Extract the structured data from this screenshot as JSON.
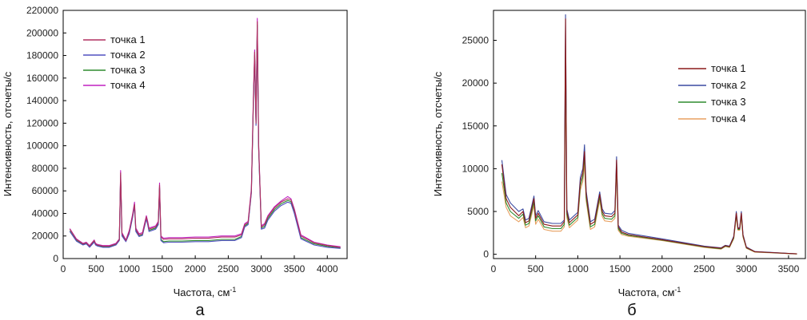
{
  "chart_data": [
    {
      "type": "line",
      "panel_label": "а",
      "xlabel": "Частота, см",
      "xlabel_sup": "-1",
      "ylabel": "Интенсивность, отсчеты/с",
      "xlim": [
        0,
        4300
      ],
      "ylim": [
        0,
        220000
      ],
      "xticks": [
        0,
        500,
        1000,
        1500,
        2000,
        2500,
        3000,
        3500,
        4000
      ],
      "yticks": [
        0,
        20000,
        40000,
        60000,
        80000,
        100000,
        120000,
        140000,
        160000,
        180000,
        200000,
        220000
      ],
      "grid": false,
      "legend": "top-left",
      "x": [
        100,
        200,
        300,
        350,
        400,
        470,
        490,
        520,
        600,
        700,
        800,
        850,
        870,
        890,
        950,
        1000,
        1050,
        1080,
        1100,
        1150,
        1200,
        1260,
        1280,
        1300,
        1400,
        1440,
        1460,
        1480,
        1520,
        1600,
        1800,
        2000,
        2200,
        2400,
        2600,
        2700,
        2750,
        2800,
        2850,
        2880,
        2900,
        2920,
        2940,
        2960,
        3000,
        3050,
        3100,
        3200,
        3300,
        3400,
        3450,
        3500,
        3600,
        3800,
        4000,
        4200
      ],
      "series": [
        {
          "name": "точка 1",
          "color": "#b03060",
          "values": [
            26000,
            17000,
            13000,
            14000,
            11000,
            16000,
            13000,
            12000,
            11000,
            11000,
            13000,
            17000,
            76000,
            22000,
            16000,
            24000,
            38000,
            48000,
            26000,
            21000,
            22000,
            37000,
            32000,
            26000,
            28000,
            32000,
            65000,
            19000,
            17000,
            17500,
            17500,
            18000,
            18000,
            19000,
            19000,
            21000,
            30000,
            32000,
            60000,
            140000,
            183000,
            120000,
            210000,
            100000,
            28000,
            30000,
            37000,
            45000,
            50000,
            53000,
            52000,
            43000,
            20000,
            14000,
            11500,
            10000
          ]
        },
        {
          "name": "точка 2",
          "color": "#5050c0",
          "values": [
            24000,
            15500,
            12000,
            13000,
            10000,
            14500,
            12000,
            11000,
            10000,
            10000,
            12000,
            16000,
            73000,
            20000,
            15000,
            22000,
            36000,
            46000,
            24000,
            19500,
            20500,
            35000,
            30000,
            24000,
            26000,
            30000,
            62000,
            16000,
            14000,
            14500,
            14500,
            15000,
            15000,
            16000,
            16000,
            18500,
            28000,
            30000,
            58000,
            137000,
            179000,
            118000,
            205000,
            97000,
            26000,
            27000,
            34000,
            42000,
            47000,
            50000,
            49000,
            40000,
            17500,
            12000,
            10000,
            9000
          ]
        },
        {
          "name": "точка 3",
          "color": "#2e8b2e",
          "values": [
            24500,
            16000,
            12500,
            13500,
            10500,
            15000,
            12500,
            11500,
            10500,
            10500,
            12500,
            16500,
            74000,
            21000,
            15500,
            23000,
            37000,
            47000,
            25000,
            20000,
            21000,
            36000,
            31000,
            25000,
            27000,
            31000,
            63000,
            17000,
            15000,
            15500,
            15500,
            16000,
            16000,
            17000,
            17000,
            19500,
            29000,
            31000,
            59000,
            138000,
            180000,
            119000,
            207000,
            98000,
            27000,
            28500,
            35500,
            43500,
            48500,
            51500,
            50500,
            41500,
            18500,
            13000,
            10800,
            9500
          ]
        },
        {
          "name": "точка 4",
          "color": "#c020c0",
          "values": [
            26500,
            17500,
            13500,
            14500,
            11500,
            16500,
            13500,
            12500,
            11500,
            11500,
            13500,
            17500,
            78000,
            23000,
            16500,
            25000,
            39000,
            50000,
            27000,
            22000,
            23000,
            38000,
            33000,
            27000,
            29000,
            33000,
            67000,
            20000,
            18000,
            18500,
            18500,
            19000,
            19000,
            20000,
            20000,
            22000,
            31000,
            33000,
            62000,
            143000,
            185000,
            122000,
            213000,
            102000,
            29000,
            31000,
            38000,
            46000,
            51000,
            55000,
            53000,
            44000,
            21000,
            14500,
            12000,
            10500
          ]
        }
      ]
    },
    {
      "type": "line",
      "panel_label": "б",
      "xlabel": "Частота, см",
      "xlabel_sup": "-1",
      "ylabel": "Интенсивность, отсчеты/с",
      "xlim": [
        0,
        3700
      ],
      "ylim": [
        -500,
        28500
      ],
      "xticks": [
        0,
        500,
        1000,
        1500,
        2000,
        2500,
        3000,
        3500
      ],
      "yticks": [
        0,
        5000,
        10000,
        15000,
        20000,
        25000
      ],
      "grid": false,
      "legend": "right",
      "x": [
        100,
        150,
        200,
        300,
        350,
        380,
        420,
        480,
        500,
        530,
        600,
        700,
        800,
        840,
        855,
        870,
        900,
        1000,
        1030,
        1060,
        1080,
        1100,
        1150,
        1200,
        1260,
        1290,
        1320,
        1400,
        1440,
        1460,
        1480,
        1520,
        1600,
        2000,
        2500,
        2700,
        2750,
        2800,
        2850,
        2880,
        2900,
        2920,
        2940,
        2960,
        3000,
        3100,
        3300,
        3500,
        3600
      ],
      "series": [
        {
          "name": "точка 1",
          "color": "#8b1a1a",
          "values": [
            10500,
            6500,
            5500,
            4500,
            5000,
            3700,
            3900,
            6500,
            4200,
            4800,
            3500,
            3300,
            3300,
            3800,
            27500,
            5000,
            3700,
            4600,
            8500,
            9500,
            12000,
            7000,
            3500,
            3800,
            7000,
            5000,
            4500,
            4400,
            4800,
            11000,
            3200,
            2600,
            2300,
            1700,
            900,
            700,
            1000,
            900,
            2000,
            4800,
            3000,
            3000,
            4800,
            2200,
            800,
            300,
            200,
            100,
            50
          ]
        },
        {
          "name": "точка 2",
          "color": "#3a4aa0",
          "values": [
            11000,
            7000,
            6000,
            5000,
            5300,
            4000,
            4200,
            6800,
            4500,
            5100,
            3800,
            3600,
            3600,
            4000,
            28000,
            5300,
            4000,
            4900,
            9000,
            10000,
            12800,
            7400,
            3800,
            4100,
            7300,
            5300,
            4800,
            4700,
            5100,
            11400,
            3400,
            2800,
            2450,
            1800,
            950,
            750,
            1050,
            950,
            2100,
            5000,
            3100,
            3100,
            5000,
            2300,
            850,
            320,
            220,
            110,
            60
          ]
        },
        {
          "name": "точка 3",
          "color": "#2e8b2e",
          "values": [
            9500,
            6000,
            5000,
            4200,
            4700,
            3400,
            3600,
            6100,
            3900,
            4500,
            3200,
            3000,
            3000,
            3500,
            24500,
            4700,
            3400,
            4300,
            8000,
            9000,
            11500,
            6600,
            3200,
            3500,
            6700,
            4700,
            4200,
            4100,
            4500,
            10500,
            3000,
            2450,
            2200,
            1650,
            850,
            650,
            950,
            850,
            1900,
            4600,
            2900,
            2900,
            4600,
            2100,
            750,
            280,
            190,
            90,
            40
          ]
        },
        {
          "name": "точка 4",
          "color": "#e8a060",
          "values": [
            8500,
            5500,
            4500,
            3800,
            4300,
            3100,
            3300,
            5700,
            3500,
            4100,
            2900,
            2700,
            2700,
            3200,
            20500,
            4300,
            3100,
            4000,
            7500,
            8500,
            10500,
            6200,
            2900,
            3200,
            6300,
            4400,
            3900,
            3800,
            4200,
            9800,
            2800,
            2300,
            2100,
            1600,
            800,
            600,
            900,
            800,
            1800,
            4400,
            2800,
            2800,
            4400,
            2000,
            700,
            250,
            170,
            80,
            30
          ]
        }
      ]
    }
  ]
}
